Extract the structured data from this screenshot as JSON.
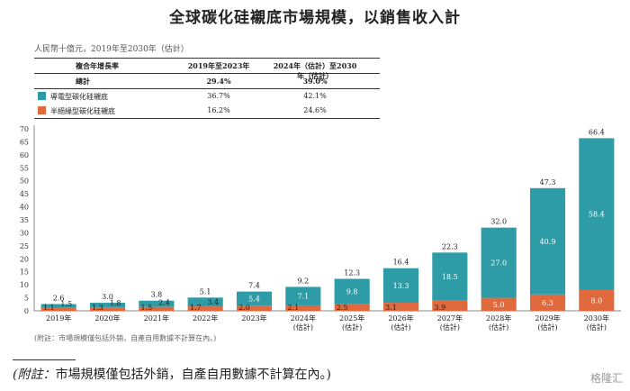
{
  "title": "全球碳化硅襯底市場規模，以銷售收入計",
  "unit_label": "人民幣十億元，2019年至2030年（估計）",
  "cagr_table": {
    "header": [
      "複合年增長率",
      "2019年至2023年",
      "2024年（估計）至2030年（估計）"
    ],
    "total": [
      "總計",
      "29.4%",
      "39.0%"
    ],
    "rows": [
      {
        "label": "導電型碳化硅襯底",
        "v1": "36.7%",
        "v2": "42.1%",
        "color": "#2e9ca6"
      },
      {
        "label": "半絕緣型碳化硅襯底",
        "v1": "16.2%",
        "v2": "24.6%",
        "color": "#e06a3d"
      }
    ]
  },
  "chart_data": {
    "type": "bar",
    "stacked": true,
    "categories": [
      [
        "2019年"
      ],
      [
        "2020年"
      ],
      [
        "2021年"
      ],
      [
        "2022年"
      ],
      [
        "2023年"
      ],
      [
        "2024年",
        "(估計)"
      ],
      [
        "2025年",
        "(估計)"
      ],
      [
        "2026年",
        "(估計)"
      ],
      [
        "2027年",
        "(估計)"
      ],
      [
        "2028年",
        "(估計)"
      ],
      [
        "2029年",
        "(估計)"
      ],
      [
        "2030年",
        "(估計)"
      ]
    ],
    "series": [
      {
        "name": "半絕緣型碳化硅襯底",
        "color": "#e06a3d",
        "values": [
          1.1,
          1.3,
          1.5,
          1.7,
          2.0,
          2.1,
          2.5,
          3.1,
          3.9,
          5.0,
          6.3,
          8.0
        ]
      },
      {
        "name": "導電型碳化硅襯底",
        "color": "#2e9ca6",
        "values": [
          1.5,
          1.8,
          2.4,
          3.4,
          5.4,
          7.1,
          9.8,
          13.3,
          18.5,
          27.0,
          40.9,
          58.4
        ]
      }
    ],
    "totals": [
      2.6,
      3.0,
      3.8,
      5.1,
      7.4,
      9.2,
      12.3,
      16.4,
      22.3,
      32.0,
      47.3,
      66.4
    ],
    "ylim": [
      0,
      70
    ],
    "yticks": [
      0,
      5,
      10,
      15,
      20,
      25,
      30,
      35,
      40,
      45,
      50,
      55,
      60,
      65,
      70
    ]
  },
  "note_small": "(附註：市場規模僅包括外銷，自產自用數據不計算在內。)",
  "note_big_prefix": "(附註：",
  "note_big_text": "市場規模僅包括外銷，自產自用數據不計算在內。)",
  "watermark": "格隆汇"
}
